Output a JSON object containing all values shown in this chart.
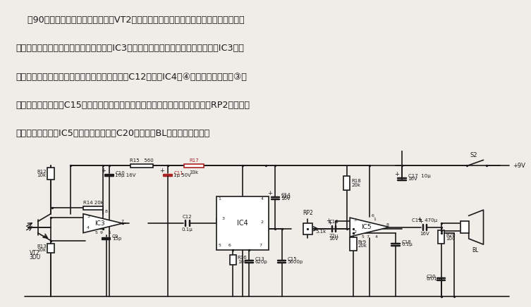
{
  "bg_color": "#f0ede8",
  "line_color": "#1a1a1a",
  "red_color": "#aa2222",
  "fig_width": 7.53,
  "fig_height": 4.36,
  "text_lines": [
    "    图90为接收机原理图。光电三极管VT2接收到对方发射来的光信号后，由集电极产生相",
    "应的信号电压，此信号电压经运算放大器IC3放大，为了不衰减载频信号，该放大器IC3选用",
    "了频带较宽的运算放大器。放大后的信号经电容C12耦合至IC4的④脚上，经解调后从③脚",
    "取出信号，并经电容C15滤波，恢复成原调制信号。解调后的音频信号经电位器RP2调节后送",
    "至音频功率放大器IC5放大，由耦合电容C20给扬声器BL还原成话音信号。"
  ],
  "lw": 1.2
}
